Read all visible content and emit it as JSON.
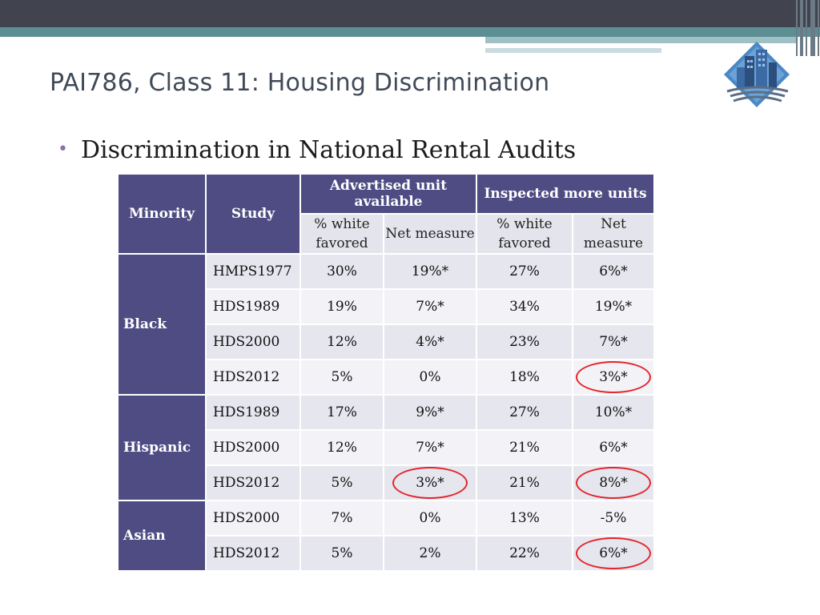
{
  "slide": {
    "title": "PAI786, Class 11:  Housing Discrimination",
    "bullet": "Discrimination in National Rental Audits"
  },
  "logo_icon": "city-building-logo-icon",
  "table": {
    "headers": {
      "minority": "Minority",
      "study": "Study",
      "group1": "Advertised unit available",
      "group2": "Inspected more units",
      "white_favored": "% white favored",
      "net_measure": "Net measure"
    },
    "groups": [
      {
        "minority": "Black",
        "rows": [
          {
            "study": "HMPS1977",
            "adv_white": "30%",
            "adv_net": "19%*",
            "insp_white": "27%",
            "insp_net": "6%*"
          },
          {
            "study": "HDS1989",
            "adv_white": "19%",
            "adv_net": "7%*",
            "insp_white": "34%",
            "insp_net": "19%*"
          },
          {
            "study": "HDS2000",
            "adv_white": "12%",
            "adv_net": "4%*",
            "insp_white": "23%",
            "insp_net": "7%*"
          },
          {
            "study": "HDS2012",
            "adv_white": "5%",
            "adv_net": "0%",
            "insp_white": "18%",
            "insp_net": "3%*"
          }
        ]
      },
      {
        "minority": "Hispanic",
        "rows": [
          {
            "study": "HDS1989",
            "adv_white": "17%",
            "adv_net": "9%*",
            "insp_white": "27%",
            "insp_net": "10%*"
          },
          {
            "study": "HDS2000",
            "adv_white": "12%",
            "adv_net": "7%*",
            "insp_white": "21%",
            "insp_net": "6%*"
          },
          {
            "study": "HDS2012",
            "adv_white": "5%",
            "adv_net": "3%*",
            "insp_white": "21%",
            "insp_net": "8%*"
          }
        ]
      },
      {
        "minority": "Asian",
        "rows": [
          {
            "study": "HDS2000",
            "adv_white": "7%",
            "adv_net": "0%",
            "insp_white": "13%",
            "insp_net": "-5%"
          },
          {
            "study": "HDS2012",
            "adv_white": "5%",
            "adv_net": "2%",
            "insp_white": "22%",
            "insp_net": "6%*"
          }
        ]
      }
    ]
  },
  "colors": {
    "header_bg": "#4f4c83",
    "accent_red": "#e3242b",
    "title_text": "#404a58"
  }
}
